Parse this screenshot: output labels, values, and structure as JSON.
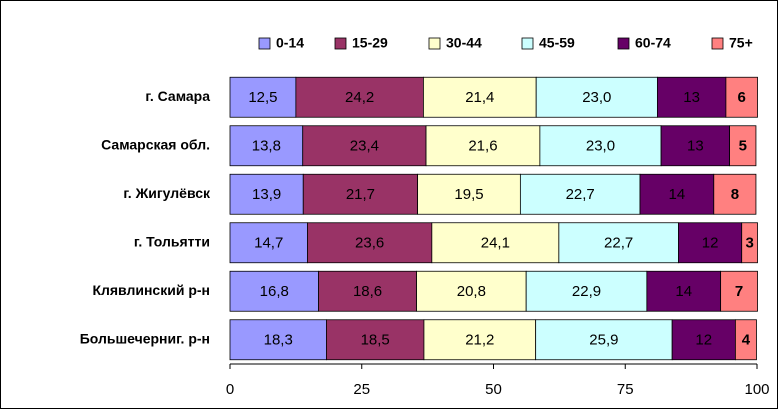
{
  "chart_data": {
    "type": "stacked-bar-horizontal",
    "categories": [
      "г. Самара",
      "Самарская обл.",
      "г. Жигулёвск",
      "г. Тольятти",
      "Клявлинский р-н",
      "Большечерниг. р-н"
    ],
    "series": [
      {
        "name": "0-14",
        "color": "#9999ff",
        "values": [
          12.5,
          13.8,
          13.9,
          14.7,
          16.8,
          18.3
        ],
        "value_labels": [
          "12,5",
          "13,8",
          "13,9",
          "14,7",
          "16,8",
          "18,3"
        ]
      },
      {
        "name": "15-29",
        "color": "#993366",
        "values": [
          24.2,
          23.4,
          21.7,
          23.6,
          18.6,
          18.5
        ],
        "value_labels": [
          "24,2",
          "23,4",
          "21,7",
          "23,6",
          "18,6",
          "18,5"
        ]
      },
      {
        "name": "30-44",
        "color": "#ffffcc",
        "values": [
          21.4,
          21.6,
          19.5,
          24.1,
          20.8,
          21.2
        ],
        "value_labels": [
          "21,4",
          "21,6",
          "19,5",
          "24,1",
          "20,8",
          "21,2"
        ]
      },
      {
        "name": "45-59",
        "color": "#ccffff",
        "values": [
          23.0,
          23.0,
          22.7,
          22.7,
          22.9,
          25.9
        ],
        "value_labels": [
          "23,0",
          "23,0",
          "22,7",
          "22,7",
          "22,9",
          "25,9"
        ]
      },
      {
        "name": "60-74",
        "color": "#660066",
        "values": [
          13,
          13,
          14,
          12,
          14,
          12
        ]
      },
      {
        "name": "75+",
        "color": "#ff8080",
        "values": [
          6,
          5,
          8,
          3,
          7,
          4
        ]
      }
    ],
    "xlim": [
      0,
      100
    ],
    "xticks": [
      0,
      25,
      50,
      75,
      100
    ],
    "legend": "top"
  }
}
